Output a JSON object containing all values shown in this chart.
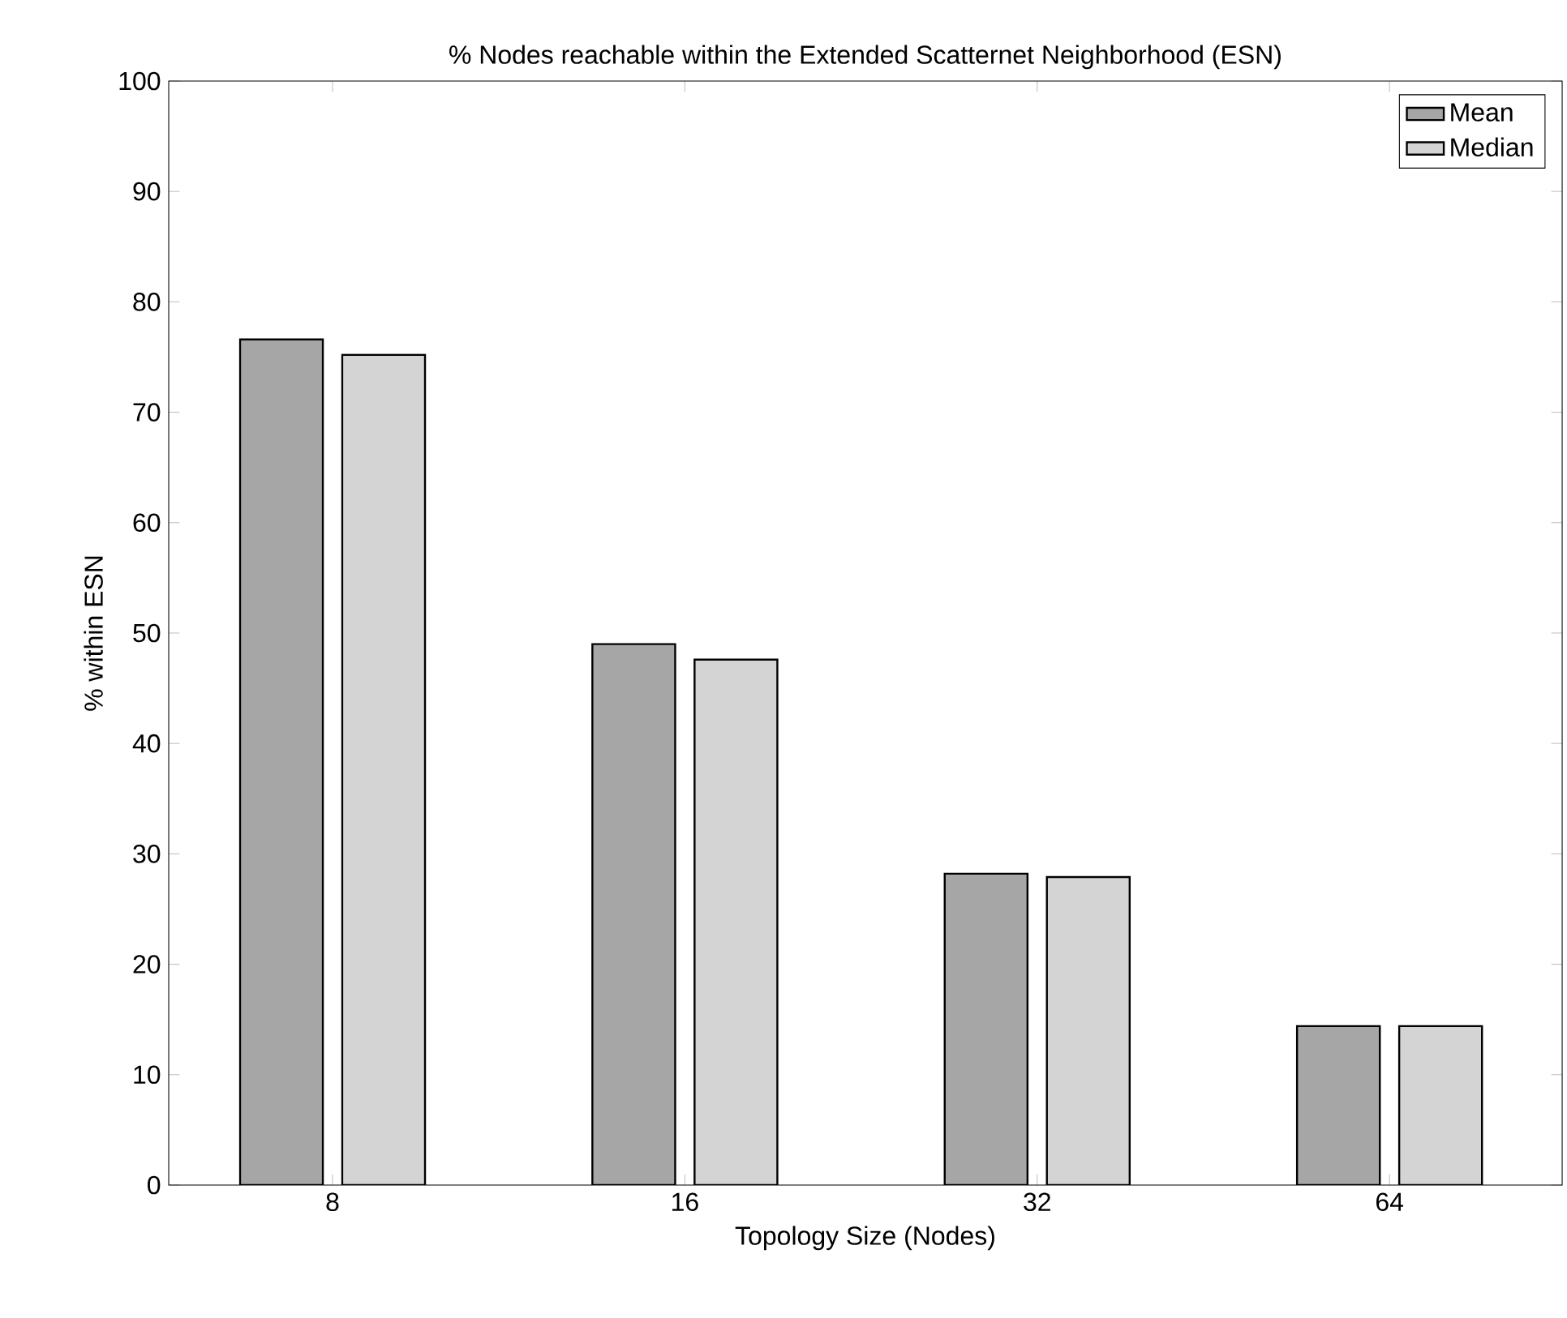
{
  "chart_data": {
    "type": "bar",
    "title": "% Nodes reachable within the Extended Scatternet Neighborhood (ESN)",
    "xlabel": "Topology Size (Nodes)",
    "ylabel": "% within ESN",
    "categories": [
      "8",
      "16",
      "32",
      "64"
    ],
    "series": [
      {
        "name": "Mean",
        "color": "#a6a6a6",
        "values": [
          76.6,
          49.0,
          28.2,
          14.4
        ]
      },
      {
        "name": "Median",
        "color": "#d4d4d4",
        "values": [
          75.2,
          47.6,
          27.9,
          14.4
        ]
      }
    ],
    "ylim": [
      0,
      100
    ],
    "yticks": [
      0,
      10,
      20,
      30,
      40,
      50,
      60,
      70,
      80,
      90,
      100
    ],
    "grid": false,
    "legend": "top right"
  }
}
